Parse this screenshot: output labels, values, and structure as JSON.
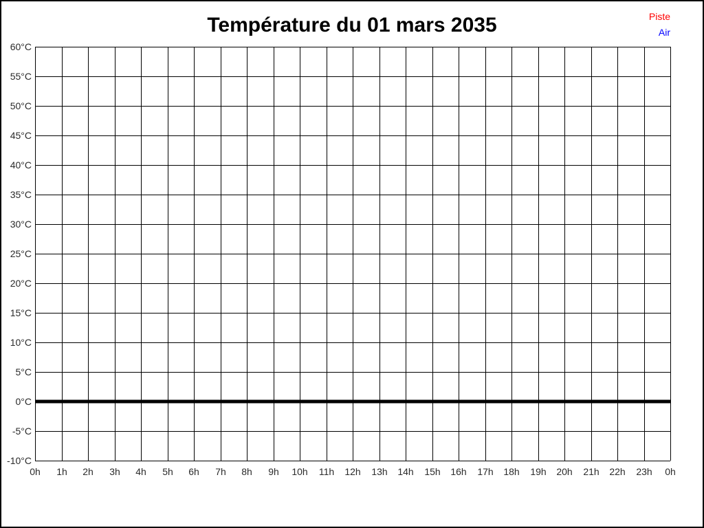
{
  "title": "Température du 01 mars 2035",
  "colors": {
    "background": "#ffffff",
    "frame_border": "#000000",
    "grid": "#000000",
    "tick_text": "#2a2a2a",
    "title_text": "#000000",
    "zero_line": "#000000",
    "piste": "#ff0000",
    "air": "#0000ff"
  },
  "legend": {
    "position": "top-right",
    "items": [
      {
        "label": "Piste",
        "color": "#ff0000"
      },
      {
        "label": "Air",
        "color": "#0000ff"
      }
    ]
  },
  "chart_data": {
    "type": "line",
    "title": "Température du 01 mars 2035",
    "xlabel": "",
    "ylabel": "",
    "ylim": [
      -10,
      60
    ],
    "y_step": 5,
    "y_ticklabels": [
      "60°C",
      "55°C",
      "50°C",
      "45°C",
      "40°C",
      "35°C",
      "30°C",
      "25°C",
      "20°C",
      "15°C",
      "10°C",
      "5°C",
      "0°C",
      "-5°C",
      "-10°C"
    ],
    "x_ticklabels": [
      "0h",
      "1h",
      "2h",
      "3h",
      "4h",
      "5h",
      "6h",
      "7h",
      "8h",
      "9h",
      "10h",
      "11h",
      "12h",
      "13h",
      "14h",
      "15h",
      "16h",
      "17h",
      "18h",
      "19h",
      "20h",
      "21h",
      "22h",
      "23h",
      "0h"
    ],
    "grid": "both",
    "legend_position": "top-right",
    "zero_line": {
      "value": 0,
      "thickness": 5
    },
    "series": [
      {
        "name": "Piste",
        "color": "#ff0000",
        "points": []
      },
      {
        "name": "Air",
        "color": "#0000ff",
        "points": []
      }
    ]
  }
}
